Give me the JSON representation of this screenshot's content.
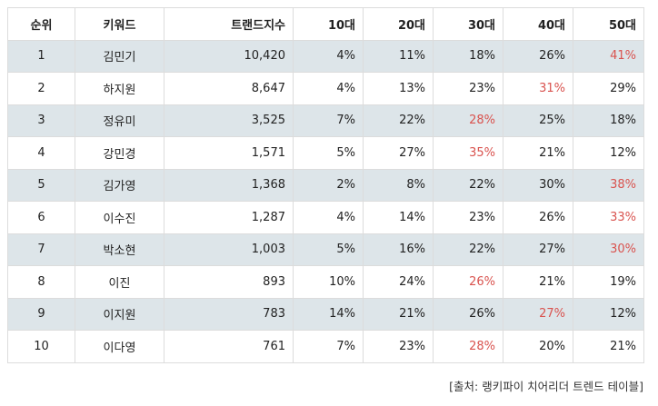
{
  "table": {
    "headers": [
      "순위",
      "키워드",
      "트랜드지수",
      "10대",
      "20대",
      "30대",
      "40대",
      "50대"
    ],
    "rows": [
      {
        "rank": "1",
        "keyword": "김민기",
        "index": "10,420",
        "ages": [
          "4%",
          "11%",
          "18%",
          "26%",
          "41%"
        ],
        "highlight": 4
      },
      {
        "rank": "2",
        "keyword": "하지원",
        "index": "8,647",
        "ages": [
          "4%",
          "13%",
          "23%",
          "31%",
          "29%"
        ],
        "highlight": 3
      },
      {
        "rank": "3",
        "keyword": "정유미",
        "index": "3,525",
        "ages": [
          "7%",
          "22%",
          "28%",
          "25%",
          "18%"
        ],
        "highlight": 2
      },
      {
        "rank": "4",
        "keyword": "강민경",
        "index": "1,571",
        "ages": [
          "5%",
          "27%",
          "35%",
          "21%",
          "12%"
        ],
        "highlight": 2
      },
      {
        "rank": "5",
        "keyword": "김가영",
        "index": "1,368",
        "ages": [
          "2%",
          "8%",
          "22%",
          "30%",
          "38%"
        ],
        "highlight": 4
      },
      {
        "rank": "6",
        "keyword": "이수진",
        "index": "1,287",
        "ages": [
          "4%",
          "14%",
          "23%",
          "26%",
          "33%"
        ],
        "highlight": 4
      },
      {
        "rank": "7",
        "keyword": "박소현",
        "index": "1,003",
        "ages": [
          "5%",
          "16%",
          "22%",
          "27%",
          "30%"
        ],
        "highlight": 4
      },
      {
        "rank": "8",
        "keyword": "이진",
        "index": "893",
        "ages": [
          "10%",
          "24%",
          "26%",
          "21%",
          "19%"
        ],
        "highlight": 2
      },
      {
        "rank": "9",
        "keyword": "이지원",
        "index": "783",
        "ages": [
          "14%",
          "21%",
          "26%",
          "27%",
          "12%"
        ],
        "highlight": 3
      },
      {
        "rank": "10",
        "keyword": "이다영",
        "index": "761",
        "ages": [
          "7%",
          "23%",
          "28%",
          "20%",
          "21%"
        ],
        "highlight": 2
      }
    ]
  },
  "source": "[출처: 랭키파이 치어리더 트렌드 테이블]",
  "colors": {
    "highlight": "#d9534f",
    "stripe": "#dde5e9",
    "border": "#dcdcdc"
  }
}
